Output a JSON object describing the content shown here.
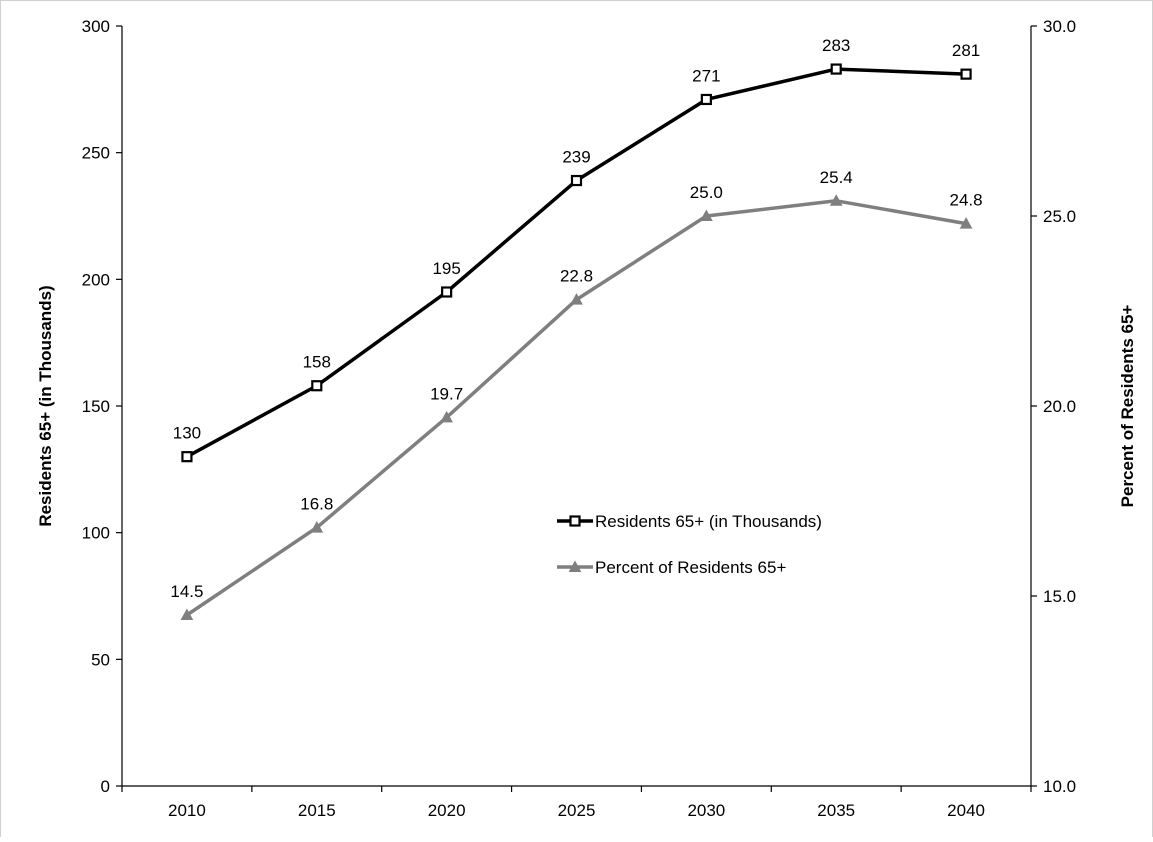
{
  "chart_data": {
    "type": "line",
    "categories": [
      "2010",
      "2015",
      "2020",
      "2025",
      "2030",
      "2035",
      "2040"
    ],
    "series": [
      {
        "name": "Residents 65+ (in Thousands)",
        "axis": "left",
        "values": [
          130,
          158,
          195,
          239,
          271,
          283,
          281
        ],
        "labels": [
          "130",
          "158",
          "195",
          "239",
          "271",
          "283",
          "281"
        ],
        "color": "#000000",
        "marker": "square"
      },
      {
        "name": "Percent of Residents 65+",
        "axis": "right",
        "values": [
          14.5,
          16.8,
          19.7,
          22.8,
          25.0,
          25.4,
          24.8
        ],
        "labels": [
          "14.5",
          "16.8",
          "19.7",
          "22.8",
          "25.0",
          "25.4",
          "24.8"
        ],
        "color": "#7f7f7f",
        "marker": "triangle"
      }
    ],
    "ylabel": "Residents 65+ (in Thousands)",
    "y2label": "Percent of Residents 65+",
    "xlabel": "",
    "ylim": [
      0,
      300
    ],
    "y2lim": [
      10.0,
      30.0
    ],
    "yticks": [
      "0",
      "50",
      "100",
      "150",
      "200",
      "250",
      "300"
    ],
    "y2ticks": [
      "10.0",
      "15.0",
      "20.0",
      "25.0",
      "30.0"
    ],
    "grid": false,
    "legend_position": "center-right"
  }
}
